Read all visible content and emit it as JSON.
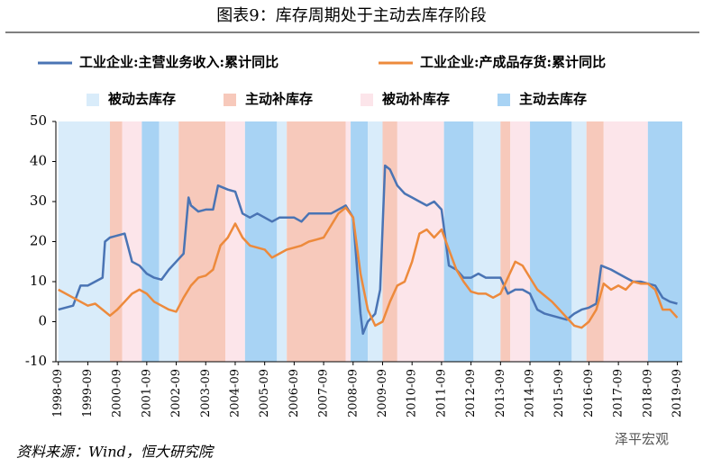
{
  "chart_data": {
    "type": "line",
    "title": "图表9：库存周期处于主动去库存阶段",
    "source": "资料来源：Wind，恒大研究院",
    "watermark": "泽平宏观",
    "xlim": [
      "1998-08",
      "2019-11"
    ],
    "xticks": [
      "1998-09",
      "1999-09",
      "2000-09",
      "2001-09",
      "2002-09",
      "2003-09",
      "2004-09",
      "2005-09",
      "2006-09",
      "2007-09",
      "2008-09",
      "2009-09",
      "2010-09",
      "2011-09",
      "2012-09",
      "2013-09",
      "2014-09",
      "2015-09",
      "2016-09",
      "2017-09",
      "2018-09",
      "2019-09"
    ],
    "ylim": [
      -10,
      50
    ],
    "yticks": [
      -10,
      0,
      10,
      20,
      30,
      40,
      50
    ],
    "band_legend": [
      {
        "name": "被动去库存",
        "color": "#d9ecfa"
      },
      {
        "name": "主动补库存",
        "color": "#f7c9bb"
      },
      {
        "name": "被动补库存",
        "color": "#fce5ea"
      },
      {
        "name": "主动去库存",
        "color": "#a8d3f4"
      }
    ],
    "bands": [
      {
        "type": 0,
        "start": "1998-09",
        "end": "2000-06"
      },
      {
        "type": 1,
        "start": "2000-06",
        "end": "2000-11"
      },
      {
        "type": 2,
        "start": "2000-11",
        "end": "2001-07"
      },
      {
        "type": 3,
        "start": "2001-07",
        "end": "2002-02"
      },
      {
        "type": 0,
        "start": "2002-02",
        "end": "2002-10"
      },
      {
        "type": 1,
        "start": "2002-10",
        "end": "2004-05"
      },
      {
        "type": 2,
        "start": "2004-05",
        "end": "2005-01"
      },
      {
        "type": 3,
        "start": "2005-01",
        "end": "2006-02"
      },
      {
        "type": 0,
        "start": "2006-02",
        "end": "2006-06"
      },
      {
        "type": 1,
        "start": "2006-06",
        "end": "2008-06"
      },
      {
        "type": 2,
        "start": "2008-06",
        "end": "2008-08"
      },
      {
        "type": 3,
        "start": "2008-08",
        "end": "2009-03"
      },
      {
        "type": 0,
        "start": "2009-03",
        "end": "2009-09"
      },
      {
        "type": 1,
        "start": "2009-09",
        "end": "2010-03"
      },
      {
        "type": 2,
        "start": "2010-03",
        "end": "2011-10"
      },
      {
        "type": 3,
        "start": "2011-10",
        "end": "2012-10"
      },
      {
        "type": 0,
        "start": "2012-10",
        "end": "2013-09"
      },
      {
        "type": 1,
        "start": "2013-09",
        "end": "2014-01"
      },
      {
        "type": 2,
        "start": "2014-01",
        "end": "2014-09"
      },
      {
        "type": 3,
        "start": "2014-09",
        "end": "2016-02"
      },
      {
        "type": 0,
        "start": "2016-02",
        "end": "2016-08"
      },
      {
        "type": 1,
        "start": "2016-08",
        "end": "2017-03"
      },
      {
        "type": 2,
        "start": "2017-03",
        "end": "2018-09"
      },
      {
        "type": 3,
        "start": "2018-09",
        "end": "2019-11"
      }
    ],
    "series": [
      {
        "name": "工业企业:主营业务收入:累计同比",
        "color": "#4a74b4",
        "x": [
          "1998-09",
          "1999-03",
          "1999-06",
          "1999-09",
          "1999-12",
          "2000-03",
          "2000-04",
          "2000-06",
          "2000-09",
          "2000-12",
          "2001-03",
          "2001-06",
          "2001-09",
          "2001-12",
          "2002-03",
          "2002-06",
          "2002-09",
          "2002-12",
          "2003-02",
          "2003-03",
          "2003-06",
          "2003-09",
          "2003-12",
          "2004-02",
          "2004-06",
          "2004-09",
          "2004-12",
          "2005-03",
          "2005-06",
          "2005-09",
          "2005-12",
          "2006-03",
          "2006-06",
          "2006-09",
          "2006-12",
          "2007-03",
          "2007-06",
          "2007-09",
          "2007-12",
          "2008-06",
          "2008-09",
          "2008-12",
          "2009-01",
          "2009-03",
          "2009-06",
          "2009-08",
          "2009-10",
          "2009-12",
          "2010-03",
          "2010-06",
          "2010-09",
          "2010-12",
          "2011-03",
          "2011-06",
          "2011-09",
          "2011-12",
          "2012-03",
          "2012-06",
          "2012-09",
          "2012-12",
          "2013-03",
          "2013-06",
          "2013-09",
          "2013-12",
          "2014-03",
          "2014-06",
          "2014-09",
          "2014-12",
          "2015-03",
          "2015-06",
          "2015-09",
          "2015-12",
          "2016-03",
          "2016-06",
          "2016-09",
          "2016-12",
          "2017-02",
          "2017-06",
          "2017-09",
          "2017-12",
          "2018-03",
          "2018-06",
          "2018-09",
          "2018-12",
          "2019-03",
          "2019-06",
          "2019-09"
        ],
        "values": [
          3,
          4,
          9,
          9,
          10,
          11,
          20,
          21,
          21.5,
          22,
          15,
          14,
          12,
          11,
          10.5,
          13,
          15,
          17,
          31,
          29,
          27.5,
          28,
          28,
          34,
          33,
          32.5,
          27,
          26,
          27,
          26,
          25,
          26,
          26,
          26,
          25,
          27,
          27,
          27,
          27,
          29,
          26,
          2,
          -3,
          0,
          2,
          8,
          39,
          38,
          34,
          32,
          31,
          30,
          29,
          30,
          28,
          14,
          13,
          11,
          11,
          12,
          11,
          11,
          11,
          7,
          8,
          8,
          7,
          3,
          2,
          1.5,
          1,
          0.5,
          2,
          3,
          3.5,
          4.5,
          14,
          13,
          12,
          11,
          10,
          10,
          9.5,
          9,
          6,
          5,
          4.5
        ]
      },
      {
        "name": "工业企业:产成品存货:累计同比",
        "color": "#ed8a3c",
        "x": [
          "1998-09",
          "1999-03",
          "1999-06",
          "1999-09",
          "1999-12",
          "2000-03",
          "2000-06",
          "2000-09",
          "2000-12",
          "2001-03",
          "2001-06",
          "2001-09",
          "2001-12",
          "2002-03",
          "2002-06",
          "2002-09",
          "2002-12",
          "2003-03",
          "2003-06",
          "2003-09",
          "2003-12",
          "2004-03",
          "2004-06",
          "2004-09",
          "2004-12",
          "2005-03",
          "2005-06",
          "2005-09",
          "2005-12",
          "2006-03",
          "2006-06",
          "2006-09",
          "2006-12",
          "2007-03",
          "2007-06",
          "2007-09",
          "2007-12",
          "2008-03",
          "2008-06",
          "2008-09",
          "2008-12",
          "2009-03",
          "2009-06",
          "2009-09",
          "2009-12",
          "2010-03",
          "2010-06",
          "2010-09",
          "2010-12",
          "2011-03",
          "2011-06",
          "2011-09",
          "2011-12",
          "2012-03",
          "2012-06",
          "2012-09",
          "2012-12",
          "2013-03",
          "2013-06",
          "2013-09",
          "2013-12",
          "2014-03",
          "2014-06",
          "2014-09",
          "2014-12",
          "2015-03",
          "2015-06",
          "2015-09",
          "2015-12",
          "2016-03",
          "2016-06",
          "2016-09",
          "2016-12",
          "2017-03",
          "2017-06",
          "2017-09",
          "2017-12",
          "2018-03",
          "2018-06",
          "2018-09",
          "2018-12",
          "2019-03",
          "2019-06",
          "2019-09"
        ],
        "values": [
          8,
          6,
          5,
          4,
          4.5,
          3,
          1.5,
          3,
          5,
          7,
          8,
          7,
          5,
          4,
          3,
          2.5,
          6,
          9,
          11,
          11.5,
          13,
          19,
          21,
          24.5,
          21,
          19,
          18.5,
          18,
          16,
          17,
          18,
          18.5,
          19,
          20,
          20.5,
          21,
          24,
          27,
          28.5,
          26,
          12,
          3,
          -1,
          0,
          5,
          9,
          10,
          15,
          22,
          23,
          21,
          23,
          18,
          13,
          10,
          7.5,
          7,
          7,
          6,
          7,
          11,
          15,
          14,
          11,
          8,
          6.5,
          5,
          3,
          1,
          -1,
          -1.5,
          0,
          3,
          9.5,
          8,
          9,
          8,
          10,
          9.5,
          9.5,
          8,
          3,
          3,
          1
        ]
      }
    ]
  }
}
